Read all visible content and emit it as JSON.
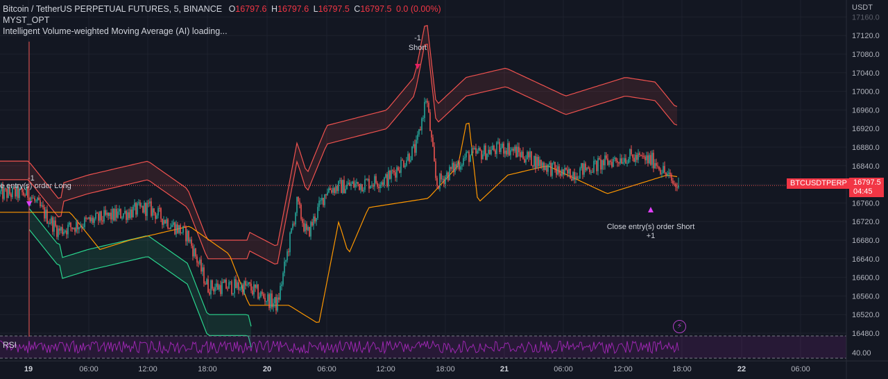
{
  "header": {
    "symbol": "Bitcoin / TetherUS PERPETUAL FUTURES, 5, BINANCE",
    "o_label": "O",
    "o_value": "16797.6",
    "h_label": "H",
    "h_value": "16797.6",
    "l_label": "L",
    "l_value": "16797.5",
    "c_label": "C",
    "c_value": "16797.5",
    "change": "0.0 (0.00%)",
    "indicator_1": "MYST_OPT",
    "indicator_2": "Intelligent Volume-weighted Moving Average (AI) loading..."
  },
  "price_scale": {
    "unit": "USDT",
    "ticks": [
      "17160.0",
      "17120.0",
      "17080.0",
      "17040.0",
      "17000.0",
      "16960.0",
      "16920.0",
      "16880.0",
      "16840.0",
      "16800.0",
      "16760.0",
      "16720.0",
      "16680.0",
      "16640.0",
      "16600.0",
      "16560.0",
      "16520.0",
      "16480.0"
    ],
    "current_price": "16797.5",
    "countdown": "04:45",
    "symbol_tag": "BTCUSDTPERP"
  },
  "time_axis": {
    "ticks": [
      "19",
      "06:00",
      "12:00",
      "18:00",
      "20",
      "06:00",
      "12:00",
      "18:00",
      "21",
      "06:00",
      "12:00",
      "18:00",
      "22",
      "06:00"
    ]
  },
  "rsi": {
    "label": "RSI",
    "tick": "40.00"
  },
  "colors": {
    "background": "#131722",
    "up": "#26a69a",
    "down": "#ef5350",
    "upper_band": "#f0524f",
    "lower_band": "#2ad58e",
    "vwma": "#ff9800",
    "rsi": "#9c27b0",
    "signal": "#e91e63",
    "signal_alt": "#e040fb"
  },
  "annotations": {
    "long_close": "e entry(s) order Long",
    "long_close_qty": "-1",
    "short_entry_qty": "-1",
    "short_entry": "Short",
    "short_close": "Close entry(s) order Short",
    "short_close_qty": "+1"
  },
  "chart_data": {
    "type": "candlestick",
    "interval": "5",
    "x_axis": "time (19 — 22)",
    "y_axis": "USDT",
    "ylim": [
      16470,
      17180
    ],
    "current_price": 16797.5,
    "approx_close_path": [
      {
        "t": "19 00:00",
        "close": 16780
      },
      {
        "t": "19 03:00",
        "close": 16700
      },
      {
        "t": "19 06:00",
        "close": 16720
      },
      {
        "t": "19 12:00",
        "close": 16750
      },
      {
        "t": "19 16:00",
        "close": 16690
      },
      {
        "t": "19 18:00",
        "close": 16580
      },
      {
        "t": "19 22:00",
        "close": 16580
      },
      {
        "t": "20 01:00",
        "close": 16540
      },
      {
        "t": "20 03:00",
        "close": 16760
      },
      {
        "t": "20 04:00",
        "close": 16690
      },
      {
        "t": "20 06:00",
        "close": 16790
      },
      {
        "t": "20 12:00",
        "close": 16810
      },
      {
        "t": "20 15:00",
        "close": 16880
      },
      {
        "t": "20 16:00",
        "close": 16990
      },
      {
        "t": "20 17:00",
        "close": 16800
      },
      {
        "t": "20 20:00",
        "close": 16860
      },
      {
        "t": "21 00:00",
        "close": 16880
      },
      {
        "t": "21 06:00",
        "close": 16820
      },
      {
        "t": "21 12:00",
        "close": 16860
      },
      {
        "t": "21 15:00",
        "close": 16850
      },
      {
        "t": "21 17:00",
        "close": 16797.5
      }
    ],
    "series": [
      {
        "type": "band",
        "role": "upper-band"
      },
      {
        "type": "band",
        "role": "lower-band"
      },
      {
        "type": "line",
        "role": "vwma"
      },
      {
        "type": "line",
        "role": "rsi"
      }
    ],
    "rsi_reference": 40.0
  }
}
